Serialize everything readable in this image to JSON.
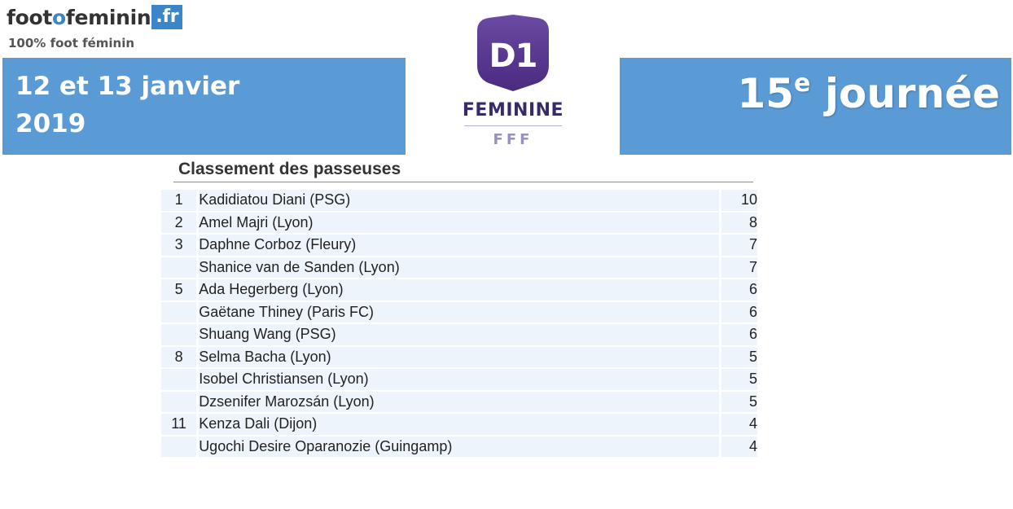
{
  "logo": {
    "part1": "foot",
    "part2": "o",
    "part3": "feminin",
    "tld": ".fr",
    "tagline": "100% foot féminin"
  },
  "header": {
    "date": "12 et 13 janvier\n2019",
    "round_number": "15",
    "round_suffix": "e",
    "round_word": "journée"
  },
  "league_logo": {
    "badge_text": "D1",
    "name": "FEMININE",
    "federation": "FFF"
  },
  "table": {
    "title": "Classement des passeuses",
    "rows": [
      {
        "rank": "1",
        "player": "Kadidiatou Diani (PSG)",
        "assists": "10"
      },
      {
        "rank": "2",
        "player": "Amel Majri (Lyon)",
        "assists": "8"
      },
      {
        "rank": "3",
        "player": "Daphne Corboz (Fleury)",
        "assists": "7"
      },
      {
        "rank": "",
        "player": "Shanice van de Sanden (Lyon)",
        "assists": "7"
      },
      {
        "rank": "5",
        "player": "Ada Hegerberg (Lyon)",
        "assists": "6"
      },
      {
        "rank": "",
        "player": "Gaëtane Thiney (Paris FC)",
        "assists": "6"
      },
      {
        "rank": "",
        "player": "Shuang Wang (PSG)",
        "assists": "6"
      },
      {
        "rank": "8",
        "player": "Selma Bacha (Lyon)",
        "assists": "5"
      },
      {
        "rank": "",
        "player": "Isobel Christiansen (Lyon)",
        "assists": "5"
      },
      {
        "rank": "",
        "player": "Dzsenifer Marozsán (Lyon)",
        "assists": "5"
      },
      {
        "rank": "11",
        "player": "Kenza Dali (Dijon)",
        "assists": "4"
      },
      {
        "rank": "",
        "player": "Ugochi Desire Oparanozie (Guingamp)",
        "assists": "4"
      }
    ]
  },
  "colors": {
    "banner_blue": "#5b9bd5",
    "logo_blue": "#3a86c8",
    "d1_purple": "#5b3a8f",
    "row_bg": "#eef4fb"
  }
}
